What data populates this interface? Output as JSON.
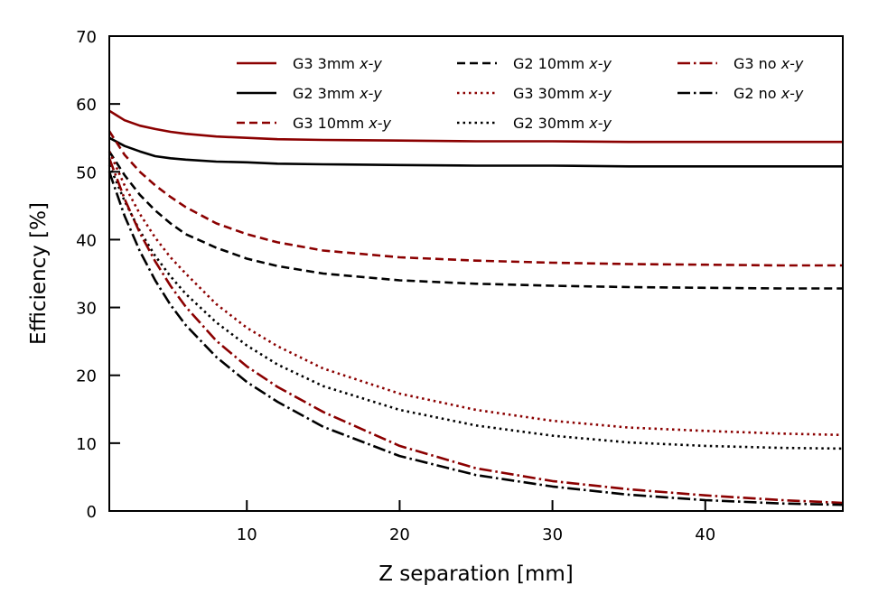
{
  "chart_data": {
    "type": "line",
    "xlabel": "Z separation [mm]",
    "ylabel": "Efficiency [%]",
    "xlim": [
      1,
      49
    ],
    "ylim": [
      0,
      70
    ],
    "xticks": [
      10,
      20,
      30,
      40
    ],
    "yticks": [
      0,
      10,
      20,
      30,
      40,
      50,
      60,
      70
    ],
    "grid": false,
    "legend_position": "top-right",
    "legend_columns": 3,
    "colors": {
      "dark_red": "#8b0000",
      "black": "#000000"
    },
    "x": [
      1,
      2,
      3,
      4,
      5,
      6,
      8,
      10,
      12,
      15,
      20,
      25,
      30,
      35,
      40,
      45,
      49
    ],
    "series": [
      {
        "name": "G3 3mm ",
        "name_italic": "x-y",
        "color": "#8b0000",
        "style": "solid",
        "values": [
          59.0,
          57.6,
          56.8,
          56.3,
          55.9,
          55.6,
          55.2,
          55.0,
          54.8,
          54.7,
          54.6,
          54.5,
          54.5,
          54.4,
          54.4,
          54.4,
          54.4
        ]
      },
      {
        "name": "G2 3mm ",
        "name_italic": "x-y",
        "color": "#000000",
        "style": "solid",
        "values": [
          55.0,
          53.8,
          53.0,
          52.3,
          52.0,
          51.8,
          51.5,
          51.4,
          51.2,
          51.1,
          51.0,
          50.9,
          50.9,
          50.8,
          50.8,
          50.8,
          50.8
        ]
      },
      {
        "name": "G3 10mm ",
        "name_italic": "x-y",
        "color": "#8b0000",
        "style": "dashed",
        "values": [
          56.0,
          52.5,
          50.0,
          48.0,
          46.3,
          44.8,
          42.4,
          40.8,
          39.6,
          38.4,
          37.4,
          36.9,
          36.6,
          36.4,
          36.3,
          36.2,
          36.2
        ]
      },
      {
        "name": "G2 10mm ",
        "name_italic": "x-y",
        "color": "#000000",
        "style": "dashed",
        "values": [
          53.0,
          49.5,
          46.6,
          44.3,
          42.4,
          40.8,
          38.8,
          37.2,
          36.1,
          35.0,
          34.0,
          33.5,
          33.2,
          33.0,
          32.9,
          32.8,
          32.8
        ]
      },
      {
        "name": "G3 30mm ",
        "name_italic": "x-y",
        "color": "#8b0000",
        "style": "dotted",
        "values": [
          53.0,
          48.0,
          43.8,
          40.3,
          37.4,
          35.0,
          30.5,
          27.0,
          24.3,
          21.0,
          17.3,
          14.9,
          13.3,
          12.3,
          11.8,
          11.4,
          11.2
        ]
      },
      {
        "name": "G2 30mm ",
        "name_italic": "x-y",
        "color": "#000000",
        "style": "dotted",
        "values": [
          51.0,
          45.7,
          41.3,
          37.6,
          34.6,
          32.0,
          27.8,
          24.4,
          21.6,
          18.4,
          14.9,
          12.6,
          11.1,
          10.1,
          9.6,
          9.3,
          9.2
        ]
      },
      {
        "name": "G3 no ",
        "name_italic": "x-y",
        "color": "#8b0000",
        "style": "dashdot",
        "values": [
          52.0,
          46.0,
          41.0,
          36.8,
          33.2,
          30.1,
          25.1,
          21.3,
          18.3,
          14.6,
          9.6,
          6.3,
          4.4,
          3.2,
          2.3,
          1.6,
          1.2
        ]
      },
      {
        "name": "G2 no ",
        "name_italic": "x-y",
        "color": "#000000",
        "style": "dashdot",
        "values": [
          50.0,
          43.5,
          38.3,
          34.0,
          30.4,
          27.4,
          22.7,
          19.0,
          16.1,
          12.4,
          8.1,
          5.3,
          3.6,
          2.4,
          1.6,
          1.1,
          0.9
        ]
      }
    ]
  }
}
